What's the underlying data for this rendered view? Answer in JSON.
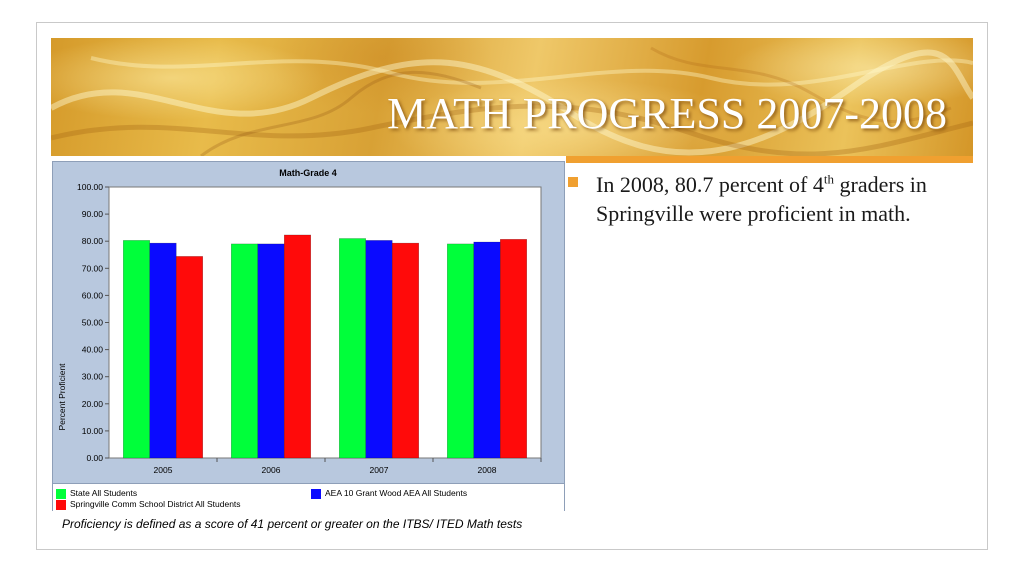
{
  "slide": {
    "title": "MATH PROGRESS 2007-2008",
    "bullet": {
      "pre": "In 2008, 80.7 percent of 4",
      "sup": "th",
      "post": " graders in Springville were proficient in math."
    },
    "footnote": "Proficiency is defined as a score of 41 percent or greater on the ITBS/ ITED Math tests",
    "accent_color": "#f0a030"
  },
  "chart_data": {
    "type": "bar",
    "title": "Math-Grade 4",
    "xlabel": "",
    "ylabel": "Percent Proficient",
    "categories": [
      "2005",
      "2006",
      "2007",
      "2008"
    ],
    "ylim": [
      0,
      100
    ],
    "yticks": [
      "0.00",
      "10.00",
      "20.00",
      "30.00",
      "40.00",
      "50.00",
      "60.00",
      "70.00",
      "80.00",
      "90.00",
      "100.00"
    ],
    "grid": false,
    "legend_position": "bottom",
    "series": [
      {
        "name": "State All Students",
        "color": "#00ff3a",
        "values": [
          80.3,
          79.0,
          81.0,
          79.0
        ]
      },
      {
        "name": "AEA 10 Grant Wood AEA All Students",
        "color": "#0a0aff",
        "values": [
          79.3,
          79.0,
          80.3,
          79.7
        ]
      },
      {
        "name": "Springville Comm School District All Students",
        "color": "#ff0a0a",
        "values": [
          74.4,
          82.3,
          79.3,
          80.7
        ]
      }
    ]
  }
}
